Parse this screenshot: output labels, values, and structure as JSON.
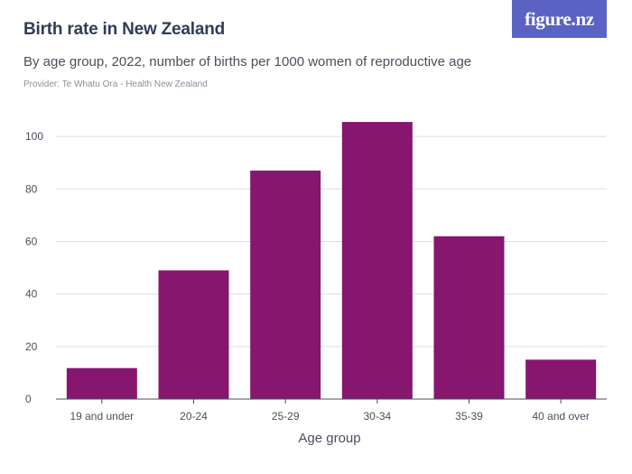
{
  "header": {
    "title": "Birth rate in New Zealand",
    "subtitle": "By age group, 2022, number of births per 1000 women of reproductive age",
    "provider": "Provider: Te Whatu Ora - Health New Zealand",
    "logo_text": "figure.nz"
  },
  "colors": {
    "bar": "#86166e",
    "grid": "#dcdde3",
    "axis": "#4a4f5c",
    "logo_bg": "#5a63c4",
    "title": "#2e3d57"
  },
  "chart_data": {
    "type": "bar",
    "title": "Birth rate in New Zealand",
    "subtitle": "By age group, 2022, number of births per 1000 women of reproductive age",
    "xlabel": "Age group",
    "ylabel": "",
    "categories": [
      "19 and under",
      "20-24",
      "25-29",
      "30-34",
      "35-39",
      "40 and over"
    ],
    "values": [
      11.8,
      49,
      87,
      105.5,
      62,
      15
    ],
    "ylim": [
      0,
      110
    ],
    "yticks": [
      0,
      20,
      40,
      60,
      80,
      100
    ],
    "grid": true,
    "legend": "none"
  }
}
